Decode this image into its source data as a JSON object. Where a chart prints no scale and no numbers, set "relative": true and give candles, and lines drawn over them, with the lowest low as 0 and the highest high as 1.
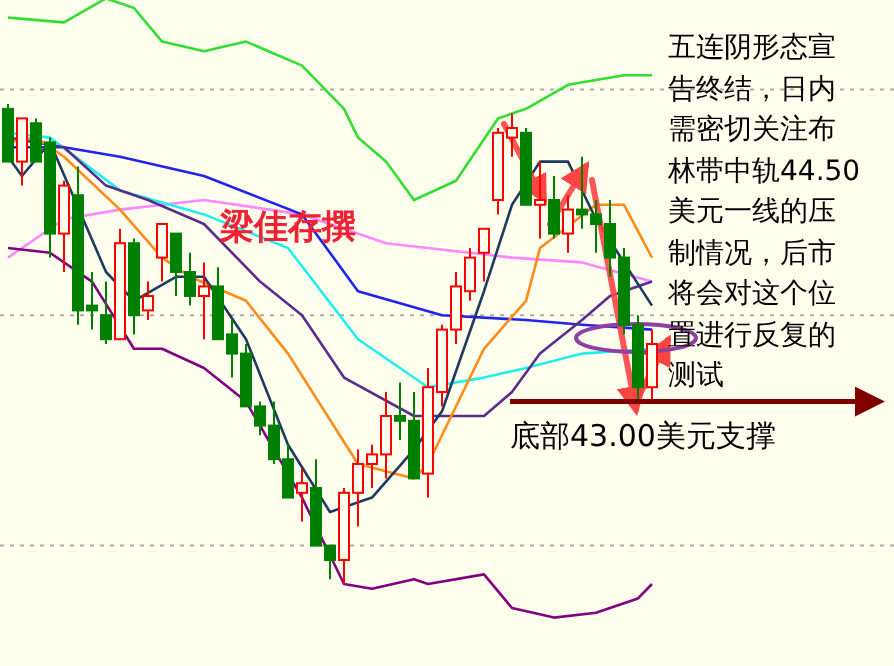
{
  "chart_data": {
    "type": "candlestick",
    "relative": true,
    "categories": [
      null,
      null,
      null,
      null,
      null,
      null,
      null,
      null,
      null,
      null,
      null,
      null,
      null,
      null,
      null,
      null,
      null,
      null,
      null,
      null,
      null,
      null,
      null,
      null,
      null,
      null,
      null,
      null,
      null,
      null,
      null,
      null,
      null,
      null,
      null,
      null,
      null,
      null,
      null,
      null,
      null,
      null,
      null,
      null,
      null,
      null,
      null
    ],
    "ohlc": [
      [
        0.99,
        1.0,
        0.88,
        0.88
      ],
      [
        0.88,
        0.97,
        0.83,
        0.97
      ],
      [
        0.96,
        0.97,
        0.88,
        0.88
      ],
      [
        0.92,
        0.93,
        0.68,
        0.73
      ],
      [
        0.73,
        0.84,
        0.65,
        0.83
      ],
      [
        0.81,
        0.87,
        0.54,
        0.57
      ],
      [
        0.58,
        0.65,
        0.53,
        0.57
      ],
      [
        0.56,
        0.63,
        0.5,
        0.51
      ],
      [
        0.51,
        0.74,
        0.51,
        0.71
      ],
      [
        0.71,
        0.72,
        0.52,
        0.56
      ],
      [
        0.57,
        0.63,
        0.55,
        0.6
      ],
      [
        0.68,
        0.75,
        0.63,
        0.75
      ],
      [
        0.73,
        0.73,
        0.6,
        0.65
      ],
      [
        0.65,
        0.69,
        0.58,
        0.6
      ],
      [
        0.6,
        0.67,
        0.51,
        0.62
      ],
      [
        0.62,
        0.66,
        0.51,
        0.51
      ],
      [
        0.52,
        0.55,
        0.43,
        0.48
      ],
      [
        0.48,
        0.5,
        0.37,
        0.37
      ],
      [
        0.37,
        0.38,
        0.31,
        0.33
      ],
      [
        0.33,
        0.38,
        0.25,
        0.26
      ],
      [
        0.26,
        0.29,
        0.18,
        0.18
      ],
      [
        0.19,
        0.24,
        0.13,
        0.21
      ],
      [
        0.2,
        0.26,
        0.08,
        0.08
      ],
      [
        0.08,
        0.08,
        0.01,
        0.05
      ],
      [
        0.05,
        0.2,
        0.0,
        0.19
      ],
      [
        0.19,
        0.28,
        0.12,
        0.25
      ],
      [
        0.25,
        0.29,
        0.2,
        0.27
      ],
      [
        0.27,
        0.4,
        0.22,
        0.35
      ],
      [
        0.35,
        0.42,
        0.3,
        0.34
      ],
      [
        0.34,
        0.4,
        0.22,
        0.22
      ],
      [
        0.23,
        0.45,
        0.18,
        0.41
      ],
      [
        0.4,
        0.54,
        0.37,
        0.53
      ],
      [
        0.53,
        0.65,
        0.5,
        0.62
      ],
      [
        0.61,
        0.7,
        0.59,
        0.68
      ],
      [
        0.69,
        0.74,
        0.63,
        0.74
      ],
      [
        0.8,
        0.95,
        0.77,
        0.94
      ],
      [
        0.93,
        0.98,
        0.89,
        0.95
      ],
      [
        0.94,
        0.95,
        0.79,
        0.79
      ],
      [
        0.79,
        0.88,
        0.72,
        0.8
      ],
      [
        0.8,
        0.85,
        0.72,
        0.73
      ],
      [
        0.73,
        0.81,
        0.69,
        0.78
      ],
      [
        0.78,
        0.89,
        0.74,
        0.77
      ],
      [
        0.77,
        0.8,
        0.69,
        0.75
      ],
      [
        0.75,
        0.8,
        0.64,
        0.68
      ],
      [
        0.68,
        0.7,
        0.52,
        0.54
      ],
      [
        0.54,
        0.56,
        0.38,
        0.41
      ],
      [
        0.41,
        0.53,
        0.38,
        0.5
      ]
    ],
    "series": [
      {
        "type": "line",
        "color": "#33dd33",
        "values": [
          1.18,
          null,
          null,
          null,
          1.17,
          null,
          null,
          1.22,
          null,
          1.2,
          null,
          1.13,
          null,
          null,
          1.11,
          null,
          null,
          1.13,
          null,
          null,
          null,
          1.08,
          null,
          null,
          0.99,
          0.93,
          null,
          0.88,
          null,
          0.8,
          null,
          null,
          0.84,
          null,
          null,
          0.97,
          null,
          0.99,
          null,
          null,
          1.04,
          null,
          null,
          null,
          1.06,
          null,
          1.06
        ]
      },
      {
        "type": "line",
        "color": "#ff88ff",
        "values": [
          0.68,
          null,
          null,
          null,
          0.76,
          null,
          null,
          null,
          0.78,
          null,
          null,
          null,
          null,
          null,
          0.8,
          null,
          null,
          null,
          null,
          null,
          null,
          0.77,
          null,
          null,
          null,
          null,
          null,
          0.71,
          null,
          null,
          null,
          null,
          null,
          null,
          null,
          null,
          0.68,
          null,
          null,
          null,
          null,
          0.67,
          null,
          null,
          null,
          null,
          0.63
        ]
      },
      {
        "type": "line",
        "color": "#2222ee",
        "values": [
          0.91,
          null,
          null,
          null,
          0.91,
          null,
          null,
          null,
          0.89,
          null,
          null,
          null,
          null,
          null,
          0.85,
          null,
          null,
          null,
          null,
          null,
          null,
          0.77,
          null,
          null,
          null,
          0.61,
          null,
          null,
          null,
          null,
          null,
          0.56,
          null,
          null,
          null,
          null,
          null,
          0.55,
          null,
          null,
          null,
          0.54,
          null,
          null,
          null,
          null,
          0.53
        ]
      },
      {
        "type": "line",
        "color": "#22eeee",
        "values": [
          0.94,
          null,
          null,
          0.93,
          null,
          null,
          null,
          null,
          0.82,
          null,
          null,
          null,
          null,
          null,
          0.77,
          null,
          null,
          null,
          null,
          null,
          0.7,
          null,
          null,
          null,
          null,
          0.51,
          null,
          null,
          null,
          null,
          0.41,
          null,
          null,
          null,
          0.43,
          null,
          null,
          0.45,
          null,
          null,
          null,
          0.48,
          null,
          null,
          null,
          null,
          0.49
        ]
      },
      {
        "type": "line",
        "color": "#5b2c8c",
        "values": [
          0.93,
          null,
          null,
          null,
          0.91,
          null,
          null,
          0.83,
          null,
          null,
          0.8,
          null,
          null,
          null,
          0.75,
          null,
          null,
          null,
          0.63,
          null,
          null,
          0.56,
          null,
          null,
          0.43,
          null,
          null,
          null,
          null,
          0.35,
          null,
          null,
          null,
          null,
          0.35,
          null,
          0.4,
          null,
          0.48,
          null,
          null,
          0.55,
          null,
          0.6,
          null,
          null,
          0.63
        ]
      },
      {
        "type": "line",
        "color": "#ff8c1a",
        "values": [
          0.92,
          null,
          0.93,
          null,
          0.89,
          null,
          null,
          null,
          0.78,
          null,
          null,
          0.68,
          null,
          0.64,
          null,
          null,
          null,
          0.59,
          null,
          null,
          0.48,
          null,
          null,
          null,
          null,
          0.25,
          null,
          null,
          null,
          0.22,
          0.25,
          null,
          null,
          null,
          0.49,
          null,
          null,
          0.59,
          0.7,
          null,
          null,
          null,
          0.79,
          null,
          0.79,
          null,
          0.68
        ]
      },
      {
        "type": "line",
        "color": "#1e3a5f",
        "values": [
          0.89,
          0.85,
          null,
          0.92,
          null,
          null,
          null,
          0.65,
          null,
          0.59,
          null,
          null,
          0.64,
          null,
          0.64,
          null,
          null,
          0.51,
          null,
          null,
          0.29,
          null,
          null,
          0.15,
          null,
          null,
          0.18,
          null,
          null,
          0.28,
          null,
          0.36,
          null,
          null,
          0.61,
          null,
          0.79,
          null,
          0.88,
          null,
          0.88,
          null,
          0.76,
          null,
          null,
          null,
          0.58
        ]
      },
      {
        "type": "line",
        "color": "#800080",
        "values": [
          0.7,
          null,
          null,
          0.69,
          null,
          null,
          0.63,
          null,
          null,
          0.49,
          null,
          0.49,
          null,
          null,
          0.45,
          null,
          null,
          0.38,
          null,
          null,
          null,
          0.18,
          null,
          null,
          0.0,
          null,
          -0.01,
          null,
          null,
          0.01,
          0.0,
          null,
          null,
          null,
          0.02,
          null,
          -0.05,
          null,
          null,
          -0.07,
          null,
          null,
          -0.06,
          null,
          null,
          -0.03,
          0.0
        ]
      }
    ],
    "ref_lines": [
      {
        "axis": "y",
        "value": 0.38,
        "label": "底部43.00美元支撑",
        "color": "#800000"
      },
      {
        "axis": "y",
        "value": 1.03,
        "color": "#aaaaaa",
        "line_style": "dotted"
      },
      {
        "axis": "y",
        "value": 0.56,
        "color": "#aaaaaa",
        "line_style": "dotted"
      },
      {
        "axis": "y",
        "value": 0.08,
        "color": "#aaaaaa",
        "line_style": "dotted"
      }
    ],
    "annotations": [
      "梁佳存撰",
      "五连阴形态宣告终结，日内需密切关注布林带中轨44.50美元一线的压制情况，后市将会对这个位置进行反复的测试"
    ]
  }
}
